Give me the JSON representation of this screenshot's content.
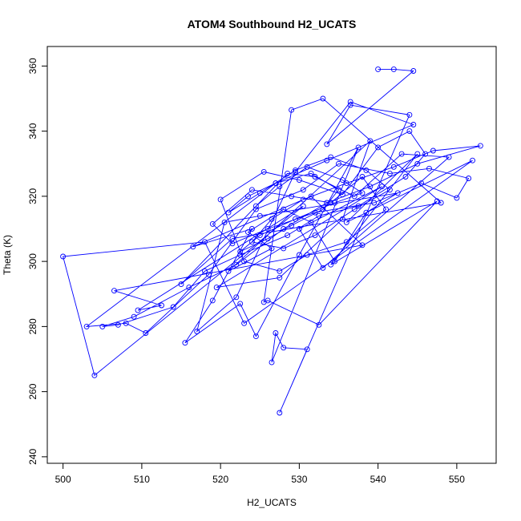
{
  "chart_data": {
    "type": "line",
    "title": "ATOM4 Southbound H2_UCATS",
    "xlabel": "H2_UCATS",
    "ylabel": "Theta (K)",
    "xlim": [
      498,
      555
    ],
    "ylim": [
      238,
      366
    ],
    "xticks": [
      500,
      510,
      520,
      530,
      540,
      550
    ],
    "yticks": [
      240,
      260,
      280,
      300,
      320,
      340,
      360
    ],
    "grid": false,
    "markers": "open-circle",
    "series": [
      {
        "color": "#0000ff",
        "x": [
          540.0,
          542.0,
          544.5,
          533.5,
          536.5,
          544.0,
          527.5,
          531.0,
          528.0,
          527.0,
          526.5,
          537.5,
          530.0,
          524.5,
          522.5,
          515.5,
          519.0,
          524.0,
          516.5,
          531.5,
          538.0,
          506.5,
          512.5,
          509.5,
          530.5,
          504.0,
          500.0,
          518.0,
          523.0,
          552.0,
          536.0,
          545.0,
          534.0,
          547.5,
          532.5,
          526.0,
          525.5,
          529.0,
          533.0,
          548.0,
          521.5,
          515.0,
          528.5,
          532.0,
          537.0,
          543.0,
          549.0,
          533.0,
          530.0,
          540.5,
          519.5,
          527.5,
          535.5,
          539.0,
          521.0,
          526.5,
          523.5,
          528.0,
          531.5,
          534.5,
          538.5,
          542.5,
          525.0,
          520.5,
          517.0,
          522.0,
          529.5,
          536.5,
          544.5,
          533.5,
          527.0,
          503.0,
          508.0,
          510.5,
          518.5,
          524.5,
          530.5,
          535.0,
          541.5,
          546.5,
          551.5,
          550.0,
          545.5,
          539.5,
          532.0,
          526.0,
          521.5,
          519.0,
          524.0,
          529.0,
          534.0,
          538.0,
          541.0,
          536.0,
          531.0,
          527.5,
          523.0,
          520.0,
          525.5,
          530.0,
          535.5,
          540.0,
          544.0,
          546.0,
          543.5,
          537.5,
          532.5,
          528.5,
          522.5,
          518.0,
          514.0,
          507.0,
          505.0,
          509.0,
          516.0,
          522.0,
          528.0,
          533.5,
          539.0,
          545.0,
          553.0,
          547.0,
          542.0,
          536.0,
          530.5,
          526.5,
          524.0,
          528.0,
          532.0,
          537.0,
          541.5,
          538.5,
          534.0,
          529.5,
          525.0,
          521.0,
          523.5,
          527.0,
          531.5,
          535.0,
          533.0,
          529.0,
          526.0,
          522.5,
          525.0,
          529.5,
          534.5,
          538.0,
          535.5,
          531.0,
          527.5,
          524.5
        ],
        "y": [
          359.0,
          359.0,
          358.5,
          336.0,
          348.0,
          345.0,
          253.5,
          273.0,
          273.5,
          278.0,
          269.0,
          335.0,
          302.0,
          277.0,
          287.0,
          275.0,
          288.0,
          310.0,
          304.5,
          320.0,
          305.0,
          291.0,
          286.5,
          285.0,
          317.0,
          265.0,
          301.5,
          306.0,
          281.0,
          331.0,
          312.0,
          333.0,
          299.0,
          318.5,
          280.5,
          288.0,
          287.5,
          346.5,
          350.0,
          318.0,
          307.0,
          293.0,
          327.0,
          326.0,
          320.0,
          333.0,
          332.0,
          298.0,
          310.0,
          323.0,
          292.0,
          295.0,
          313.0,
          337.0,
          297.0,
          304.0,
          309.0,
          316.0,
          312.0,
          300.0,
          315.0,
          321.0,
          314.0,
          312.0,
          278.5,
          289.0,
          327.5,
          349.0,
          342.0,
          331.0,
          324.0,
          280.0,
          281.0,
          278.0,
          296.0,
          316.0,
          322.0,
          330.0,
          327.0,
          328.5,
          325.5,
          319.5,
          324.0,
          318.0,
          315.0,
          310.0,
          305.5,
          311.5,
          322.0,
          320.0,
          318.0,
          326.0,
          316.0,
          306.0,
          302.0,
          297.0,
          300.0,
          319.0,
          327.5,
          325.0,
          320.5,
          335.0,
          340.0,
          333.0,
          326.0,
          317.0,
          314.0,
          308.0,
          302.0,
          297.0,
          286.0,
          280.5,
          280.0,
          283.0,
          292.0,
          299.0,
          310.0,
          318.0,
          323.0,
          330.0,
          335.5,
          334.0,
          329.0,
          324.0,
          319.0,
          313.0,
          306.0,
          304.0,
          308.0,
          316.0,
          322.0,
          328.0,
          332.0,
          328.0,
          321.0,
          315.0,
          320.0,
          324.0,
          327.0,
          322.0,
          316.0,
          311.0,
          307.0,
          303.0,
          308.0,
          313.0,
          318.0,
          321.0,
          325.0,
          329.0,
          323.0,
          317.0
        ]
      }
    ]
  }
}
